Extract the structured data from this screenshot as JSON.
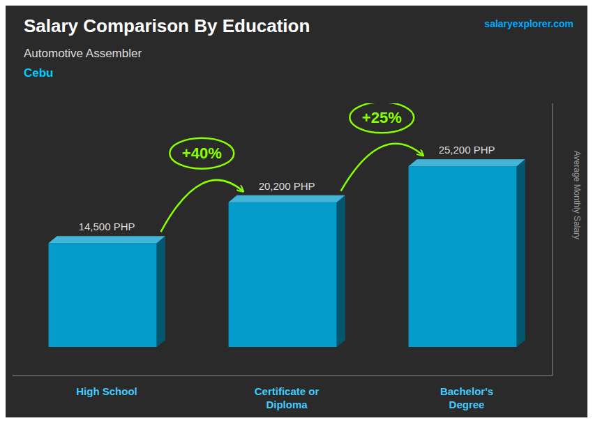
{
  "chart_data": {
    "type": "bar",
    "title": "Salary Comparison By Education",
    "subtitle": "Automotive Assembler",
    "location": "Cebu",
    "source": "salaryexplorer.com",
    "ylabel": "Average Monthly Salary",
    "categories": [
      "High School",
      "Certificate or\nDiploma",
      "Bachelor's\nDegree"
    ],
    "values": [
      14500,
      20200,
      25200
    ],
    "value_labels": [
      "14,500 PHP",
      "20,200 PHP",
      "25,200 PHP"
    ],
    "change_labels": [
      "+40%",
      "+25%"
    ],
    "color": "#00aadd",
    "ylim": [
      -4000,
      34000
    ],
    "grid": false,
    "data_labels": true,
    "tick_labels": "x"
  }
}
